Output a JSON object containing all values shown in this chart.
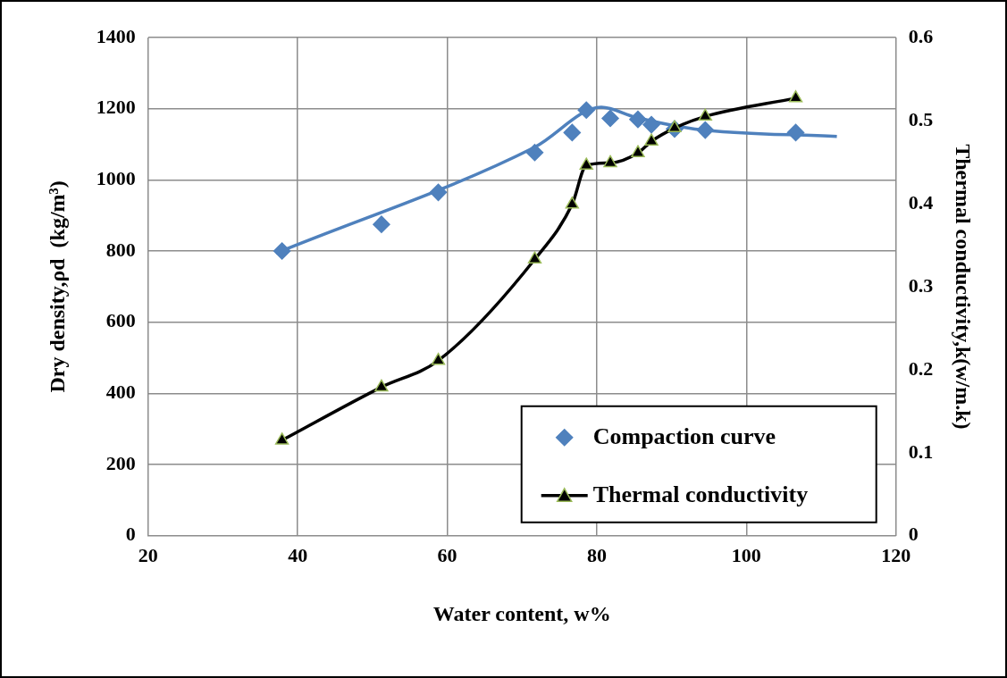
{
  "chart_data": {
    "type": "scatter",
    "xlabel": "Water content, w%",
    "ylabel": "Dry density,ρd  (kg/m³)",
    "y2label": "Thermal conductivity,k(w/m.k)",
    "xlim": [
      20,
      120
    ],
    "xticks": [
      20,
      40,
      60,
      80,
      100,
      120
    ],
    "ylim": [
      0,
      1400
    ],
    "yticks": [
      0,
      200,
      400,
      600,
      800,
      1000,
      1200,
      1400
    ],
    "y2lim": [
      0,
      0.6
    ],
    "y2ticks": [
      0,
      0.1,
      0.2,
      0.3,
      0.4,
      0.5,
      0.6
    ],
    "grid": true,
    "legend": "bottom right",
    "series": [
      {
        "name": "Compaction curve",
        "marker": "diamond",
        "color": "#4f81bd",
        "x": [
          37.9,
          51.2,
          58.8,
          71.7,
          76.7,
          78.6,
          81.8,
          85.5,
          87.3,
          90.4,
          94.5,
          106.6
        ],
        "values": [
          800,
          875,
          965,
          1077,
          1133,
          1196,
          1173,
          1170,
          1155,
          1143,
          1140,
          1133
        ]
      },
      {
        "type": "line",
        "marker": "none",
        "color": "#4f81bd",
        "x": [
          37.1,
          71.7,
          80.6,
          85.2,
          93.1,
          112.1
        ],
        "values": [
          794,
          1092,
          1204,
          1176,
          1143,
          1122
        ]
      },
      {
        "name": "Thermal conductivity",
        "type": "line",
        "axis": "y2",
        "marker": "triangle",
        "color": "#000000",
        "x": [
          37.9,
          51.2,
          58.8,
          71.7,
          76.7,
          78.6,
          81.8,
          85.5,
          87.3,
          90.4,
          94.5,
          106.6
        ],
        "values": [
          0.115,
          0.179,
          0.211,
          0.333,
          0.399,
          0.446,
          0.449,
          0.461,
          0.475,
          0.491,
          0.505,
          0.527
        ]
      }
    ]
  }
}
